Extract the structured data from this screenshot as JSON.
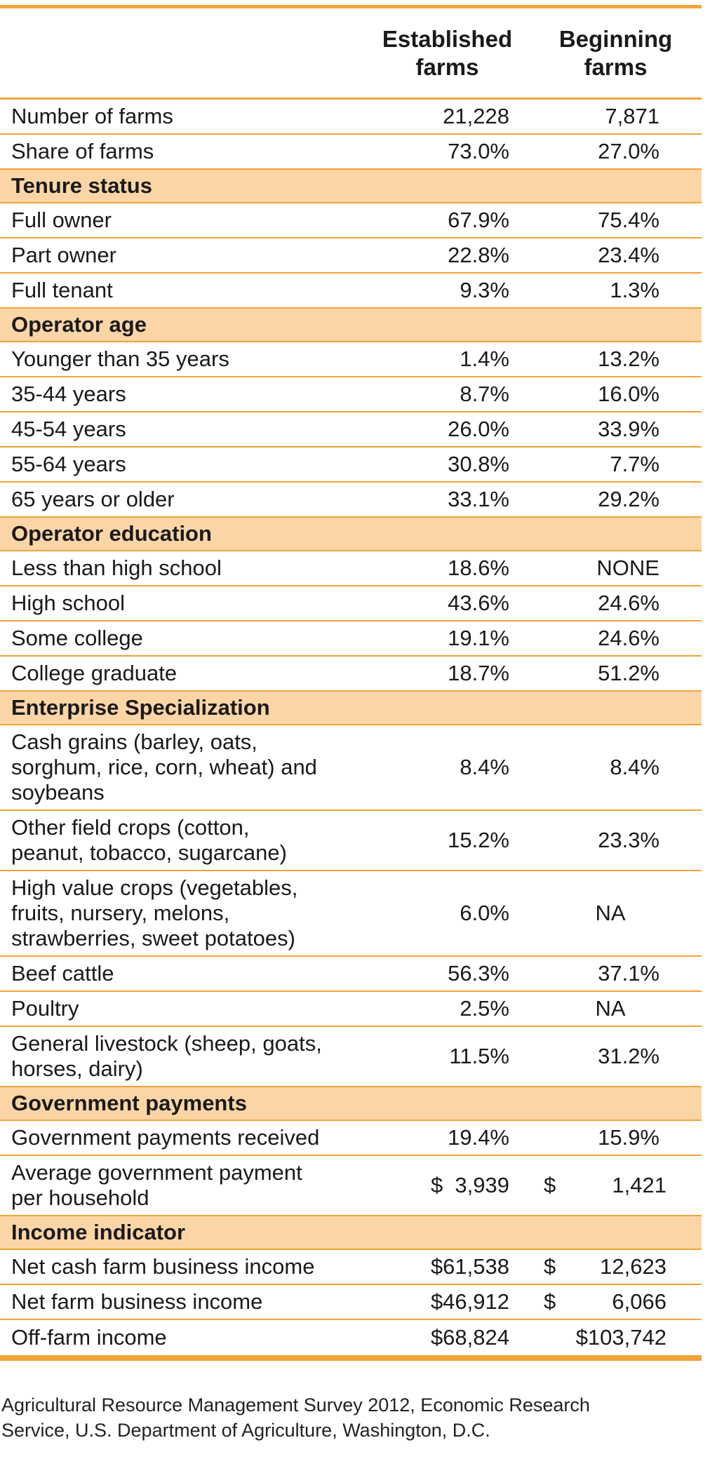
{
  "header": {
    "col1_line1": "Established",
    "col1_line2": "farms",
    "col2_line1": "Beginning",
    "col2_line2": "farms"
  },
  "rows": [
    {
      "label": "Number of farms",
      "established": "21,228",
      "beginning": "7,871"
    },
    {
      "label": "Share of farms",
      "established": "73.0%",
      "beginning": "27.0%"
    }
  ],
  "sections": [
    {
      "title": "Tenure status",
      "rows": [
        {
          "label": "Full owner",
          "established": "67.9%",
          "beginning": "75.4%"
        },
        {
          "label": "Part owner",
          "established": "22.8%",
          "beginning": "23.4%"
        },
        {
          "label": "Full tenant",
          "established": "9.3%",
          "beginning": "1.3%"
        }
      ]
    },
    {
      "title": "Operator age",
      "rows": [
        {
          "label": "Younger than 35 years",
          "established": "1.4%",
          "beginning": "13.2%"
        },
        {
          "label": "35-44 years",
          "established": "8.7%",
          "beginning": "16.0%"
        },
        {
          "label": "45-54 years",
          "established": "26.0%",
          "beginning": "33.9%"
        },
        {
          "label": "55-64 years",
          "established": "30.8%",
          "beginning": "7.7%"
        },
        {
          "label": "65 years or older",
          "established": "33.1%",
          "beginning": "29.2%"
        }
      ]
    },
    {
      "title": "Operator education",
      "rows": [
        {
          "label": "Less than high school",
          "established": "18.6%",
          "beginning": "NONE"
        },
        {
          "label": "High school",
          "established": "43.6%",
          "beginning": "24.6%"
        },
        {
          "label": "Some college",
          "established": "19.1%",
          "beginning": "24.6%"
        },
        {
          "label": "College graduate",
          "established": "18.7%",
          "beginning": "51.2%"
        }
      ]
    },
    {
      "title": "Enterprise Specialization",
      "rows": [
        {
          "label_lines": [
            "Cash grains (barley, oats,",
            "sorghum, rice, corn, wheat) and",
            "soybeans"
          ],
          "established": "8.4%",
          "beginning": "8.4%"
        },
        {
          "label_lines": [
            "Other field crops (cotton,",
            "peanut, tobacco, sugarcane)"
          ],
          "established": "15.2%",
          "beginning": "23.3%"
        },
        {
          "label_lines": [
            "High value crops (vegetables,",
            "fruits, nursery, melons,",
            "strawberries, sweet potatoes)"
          ],
          "established": "6.0%",
          "beginning": "NA"
        },
        {
          "label": "Beef cattle",
          "established": "56.3%",
          "beginning": "37.1%"
        },
        {
          "label": "Poultry",
          "established": "2.5%",
          "beginning": "NA"
        },
        {
          "label_lines": [
            "General livestock  (sheep, goats,",
            "horses, dairy)"
          ],
          "established": "11.5%",
          "beginning": "31.2%"
        }
      ]
    },
    {
      "title": "Government payments",
      "rows": [
        {
          "label": "Government payments received",
          "established": "19.4%",
          "beginning": "15.9%"
        },
        {
          "label_lines": [
            "Average government  payment",
            "per household"
          ],
          "established_sym": "$",
          "established_amt": "3,939",
          "beginning_sym": "$",
          "beginning_amt": "1,421"
        }
      ]
    },
    {
      "title": "Income indicator",
      "rows": [
        {
          "label": "Net cash farm business income",
          "established": "$61,538",
          "beginning_sym": "$",
          "beginning_amt": "12,623"
        },
        {
          "label": "Net farm business income",
          "established": "$46,912",
          "beginning_sym": "$",
          "beginning_amt": "6,066"
        },
        {
          "label": "Off-farm income",
          "established": "$68,824",
          "beginning": "$103,742"
        }
      ]
    }
  ],
  "source": {
    "line1": "Agricultural Resource Management Survey 2012, Economic Research",
    "line2": "Service, U.S. Department of Agriculture, Washington, D.C."
  }
}
